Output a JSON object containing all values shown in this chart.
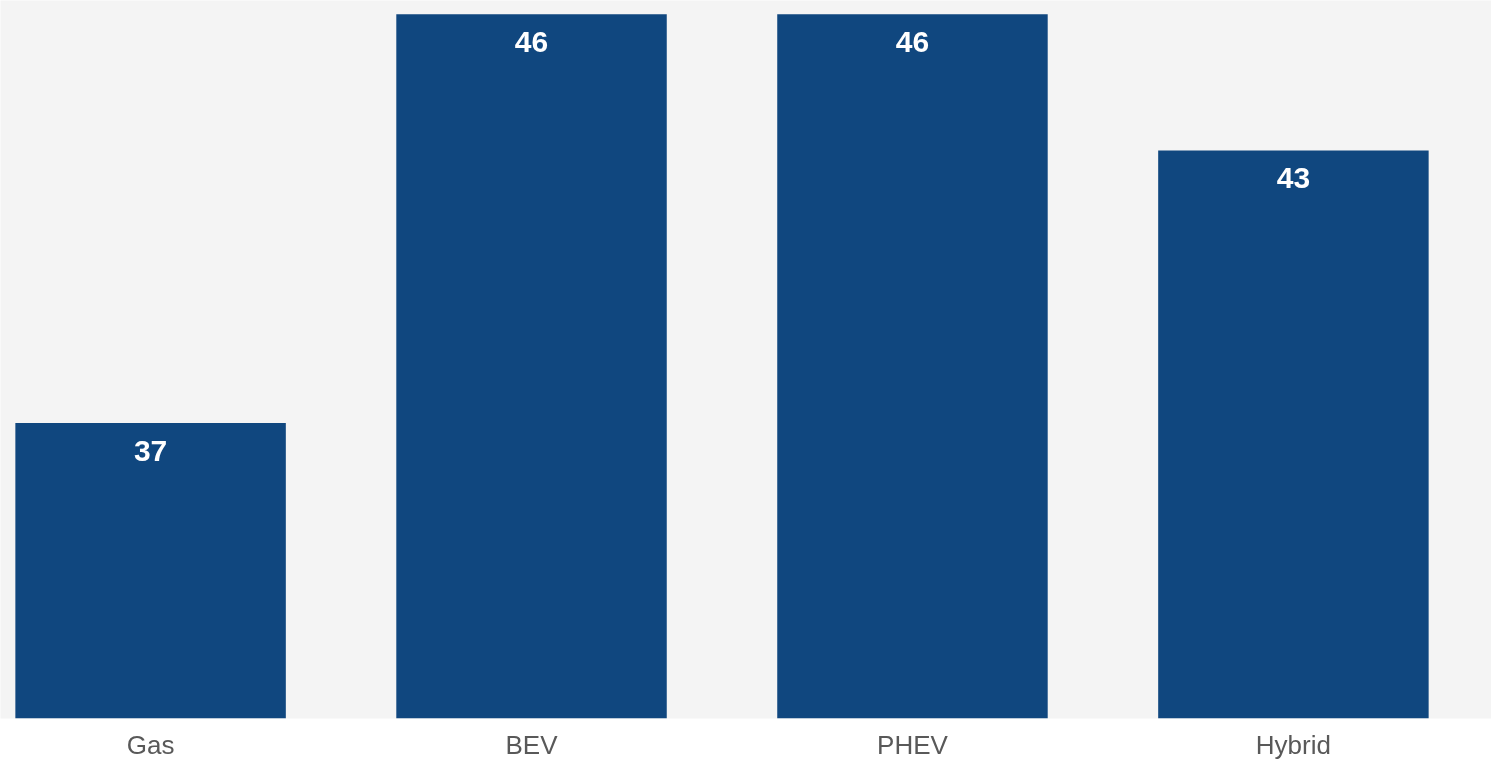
{
  "chart_data": {
    "type": "bar",
    "categories": [
      "Gas",
      "BEV",
      "PHEV",
      "Hybrid"
    ],
    "values": [
      37,
      46,
      46,
      43
    ],
    "color": "#10477f",
    "ylim": [
      30.5,
      46.3
    ],
    "data_labels": true,
    "tick_labels": "x",
    "grid": false
  }
}
